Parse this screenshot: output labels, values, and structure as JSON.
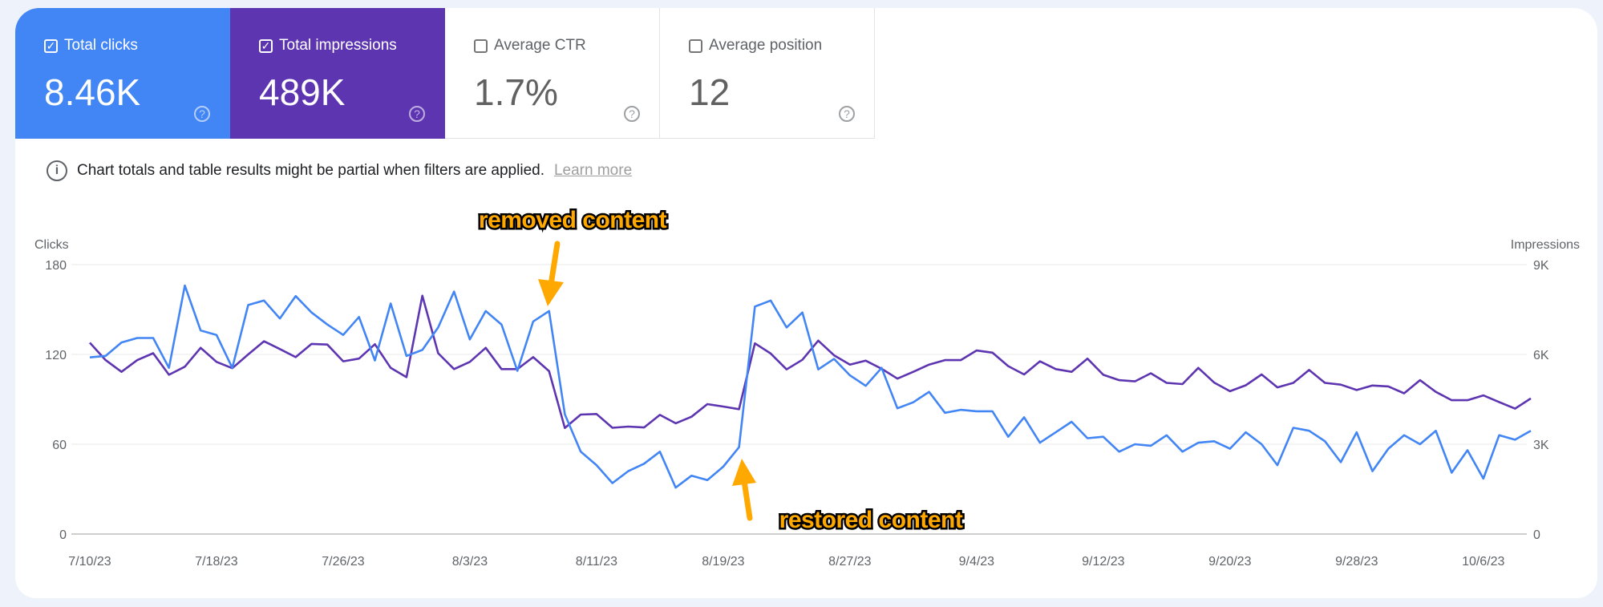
{
  "metrics": [
    {
      "label": "Total clicks",
      "value": "8.46K",
      "checked": true
    },
    {
      "label": "Total impressions",
      "value": "489K",
      "checked": true
    },
    {
      "label": "Average CTR",
      "value": "1.7%",
      "checked": false
    },
    {
      "label": "Average position",
      "value": "12",
      "checked": false
    }
  ],
  "info": {
    "text": "Chart totals and table results might be partial when filters are applied.",
    "link": "Learn more"
  },
  "colors": {
    "clicks": "#4285f4",
    "impressions": "#5e35b1",
    "annotation": "#ffa800"
  },
  "annotations": {
    "removed": "removed content",
    "restored": "restored content"
  },
  "chart_data": {
    "type": "line",
    "grid": true,
    "left_axis": {
      "label": "Clicks",
      "ticks": [
        "0",
        "60",
        "120",
        "180"
      ],
      "ylim": [
        0,
        180
      ]
    },
    "right_axis": {
      "label": "Impressions",
      "ticks": [
        "0",
        "3K",
        "6K",
        "9K"
      ],
      "ylim": [
        0,
        9000
      ]
    },
    "x_ticks": [
      "7/10/23",
      "7/18/23",
      "7/26/23",
      "8/3/23",
      "8/11/23",
      "8/19/23",
      "8/27/23",
      "9/4/23",
      "9/12/23",
      "9/20/23",
      "9/28/23",
      "10/6/23"
    ],
    "x": [
      "7/10/23",
      "7/11/23",
      "7/12/23",
      "7/13/23",
      "7/14/23",
      "7/15/23",
      "7/16/23",
      "7/17/23",
      "7/18/23",
      "7/19/23",
      "7/20/23",
      "7/21/23",
      "7/22/23",
      "7/23/23",
      "7/24/23",
      "7/25/23",
      "7/26/23",
      "7/27/23",
      "7/28/23",
      "7/29/23",
      "7/30/23",
      "7/31/23",
      "8/1/23",
      "8/2/23",
      "8/3/23",
      "8/4/23",
      "8/5/23",
      "8/6/23",
      "8/7/23",
      "8/8/23",
      "8/9/23",
      "8/10/23",
      "8/11/23",
      "8/12/23",
      "8/13/23",
      "8/14/23",
      "8/15/23",
      "8/16/23",
      "8/17/23",
      "8/18/23",
      "8/19/23",
      "8/20/23",
      "8/21/23",
      "8/22/23",
      "8/23/23",
      "8/24/23",
      "8/25/23",
      "8/26/23",
      "8/27/23",
      "8/28/23",
      "8/29/23",
      "8/30/23",
      "8/31/23",
      "9/1/23",
      "9/2/23",
      "9/3/23",
      "9/4/23",
      "9/5/23",
      "9/6/23",
      "9/7/23",
      "9/8/23",
      "9/9/23",
      "9/10/23",
      "9/11/23",
      "9/12/23",
      "9/13/23",
      "9/14/23",
      "9/15/23",
      "9/16/23",
      "9/17/23",
      "9/18/23",
      "9/19/23",
      "9/20/23",
      "9/21/23",
      "9/22/23",
      "9/23/23",
      "9/24/23",
      "9/25/23",
      "9/26/23",
      "9/27/23",
      "9/28/23",
      "9/29/23",
      "9/30/23",
      "10/1/23",
      "10/2/23",
      "10/3/23",
      "10/4/23",
      "10/5/23",
      "10/6/23",
      "10/7/23",
      "10/8/23",
      "10/9/23"
    ],
    "series": [
      {
        "name": "Clicks",
        "axis": "left",
        "values": [
          118,
          119,
          128,
          131,
          131,
          111,
          166,
          136,
          133,
          111,
          153,
          156,
          144,
          159,
          148,
          140,
          133,
          145,
          116,
          154,
          119,
          123,
          138,
          162,
          130,
          149,
          140,
          109,
          142,
          149,
          80,
          55,
          46,
          34,
          42,
          47,
          55,
          31,
          39,
          36,
          45,
          58,
          152,
          156,
          138,
          148,
          110,
          117,
          106,
          99,
          111,
          84,
          88,
          95,
          81,
          83,
          82,
          82,
          65,
          78,
          61,
          68,
          75,
          64,
          65,
          55,
          60,
          59,
          66,
          55,
          61,
          62,
          57,
          68,
          60,
          46,
          71,
          69,
          62,
          48,
          68,
          42,
          57,
          66,
          60,
          69,
          41,
          56,
          37,
          66,
          63,
          69
        ]
      },
      {
        "name": "Impressions",
        "axis": "right",
        "values": [
          6390,
          5810,
          5420,
          5810,
          6040,
          5320,
          5590,
          6220,
          5750,
          5540,
          6000,
          6440,
          6180,
          5910,
          6350,
          6330,
          5770,
          5860,
          6340,
          5550,
          5240,
          7960,
          6040,
          5510,
          5750,
          6220,
          5510,
          5510,
          5910,
          5440,
          3540,
          3990,
          4010,
          3550,
          3590,
          3560,
          3980,
          3700,
          3920,
          4340,
          4260,
          4170,
          6370,
          6030,
          5500,
          5820,
          6460,
          5970,
          5660,
          5790,
          5520,
          5190,
          5420,
          5660,
          5810,
          5810,
          6130,
          6060,
          5610,
          5330,
          5770,
          5510,
          5420,
          5860,
          5320,
          5140,
          5100,
          5370,
          5050,
          5010,
          5550,
          5060,
          4770,
          4970,
          5330,
          4900,
          5050,
          5480,
          5050,
          4990,
          4810,
          4960,
          4930,
          4700,
          5140,
          4750,
          4470,
          4470,
          4630,
          4410,
          4190,
          4530
        ]
      }
    ]
  }
}
